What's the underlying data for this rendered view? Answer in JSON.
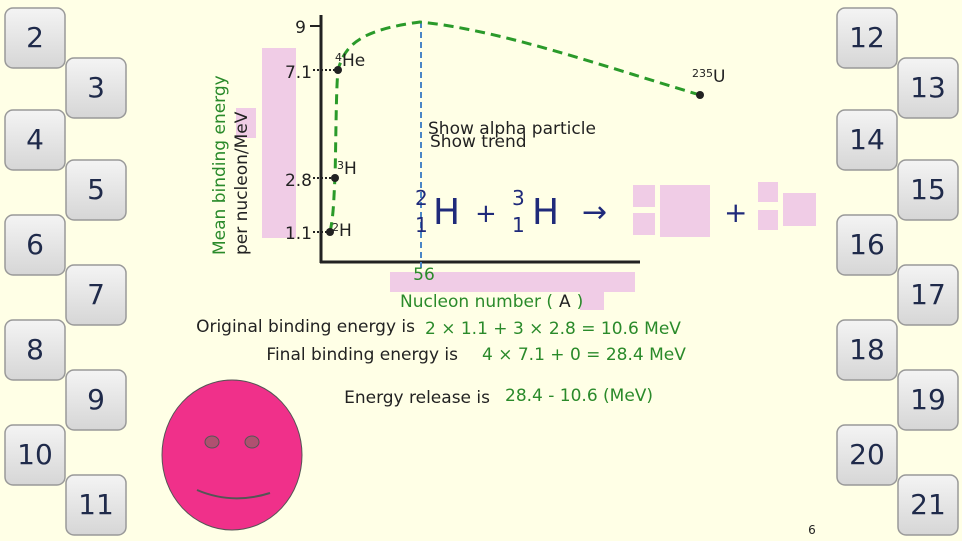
{
  "tiles": {
    "left": [
      "2",
      "3",
      "4",
      "5",
      "6",
      "7",
      "8",
      "9",
      "10",
      "11"
    ],
    "right": [
      "12",
      "13",
      "14",
      "15",
      "16",
      "17",
      "18",
      "19",
      "20",
      "21"
    ]
  },
  "graph": {
    "y_axis_label": [
      "Mean binding energy",
      "per nucleon/MeV"
    ],
    "y_labels": [
      "9",
      "7.1",
      "2.8",
      "1.1"
    ],
    "x_label": "56",
    "x_axis_label": {
      "text": "Nucleon number (",
      "symbol": "A",
      "close": ")"
    },
    "points": [
      {
        "mass": "4",
        "symbol": "He"
      },
      {
        "mass": "3",
        "symbol": "H"
      },
      {
        "mass": "2",
        "symbol": "H"
      },
      {
        "mass": "235",
        "symbol": "U"
      }
    ]
  },
  "buttons": [
    "Show alpha particle",
    "Show trend"
  ],
  "equation": {
    "left": {
      "mass": "2",
      "number": "1",
      "symbol": "H"
    },
    "plus": "+",
    "right": {
      "mass": "3",
      "number": "1",
      "symbol": "H"
    },
    "arrow": "→",
    "plus2": "+"
  },
  "calculation": {
    "original_label": "Original binding energy is",
    "original_value": "2 × 1.1 + 3 × 2.8 = 10.6 MeV",
    "final_label": "Final binding energy is",
    "final_value": "4 × 7.1 + 0 = 28.4 MeV",
    "release_label": "Energy release is",
    "release_value": "28.4 - 10.6 (MeV)"
  },
  "page_number": "6"
}
